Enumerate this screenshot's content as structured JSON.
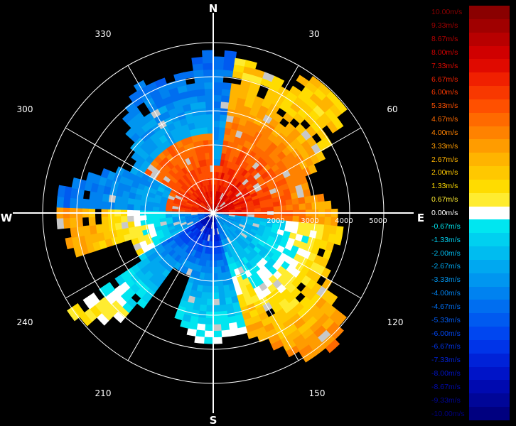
{
  "compass": {
    "north": "N",
    "east": "E",
    "south": "S",
    "west": "W"
  },
  "bearings": [
    "30",
    "60",
    "120",
    "150",
    "210",
    "240",
    "300",
    "330"
  ],
  "range_labels": [
    "2000",
    "3000",
    "4000",
    "5000"
  ],
  "legend": [
    {
      "label": "10.00m/s",
      "color": "#8a0000"
    },
    {
      "label": "9.33m/s",
      "color": "#a00000"
    },
    {
      "label": "8.67m/s",
      "color": "#b80000"
    },
    {
      "label": "8.00m/s",
      "color": "#d00000"
    },
    {
      "label": "7.33m/s",
      "color": "#e00a00"
    },
    {
      "label": "6.67m/s",
      "color": "#f02000"
    },
    {
      "label": "6.00m/s",
      "color": "#f83800"
    },
    {
      "label": "5.33m/s",
      "color": "#ff5000"
    },
    {
      "label": "4.67m/s",
      "color": "#ff6a00"
    },
    {
      "label": "4.00m/s",
      "color": "#ff8200"
    },
    {
      "label": "3.33m/s",
      "color": "#ff9c00"
    },
    {
      "label": "2.67m/s",
      "color": "#ffb400"
    },
    {
      "label": "2.00m/s",
      "color": "#ffc800"
    },
    {
      "label": "1.33m/s",
      "color": "#ffdc00"
    },
    {
      "label": "0.67m/s",
      "color": "#ffec30"
    },
    {
      "label": "0.00m/s",
      "color": "#ffffff"
    },
    {
      "label": "-0.67m/s",
      "color": "#00e6f0"
    },
    {
      "label": "-1.33m/s",
      "color": "#00d0f0"
    },
    {
      "label": "-2.00m/s",
      "color": "#00bcf0"
    },
    {
      "label": "-2.67m/s",
      "color": "#00a8f0"
    },
    {
      "label": "-3.33m/s",
      "color": "#0096f0"
    },
    {
      "label": "-4.00m/s",
      "color": "#0082f0"
    },
    {
      "label": "-4.67m/s",
      "color": "#006ef0"
    },
    {
      "label": "-5.33m/s",
      "color": "#005af0"
    },
    {
      "label": "-6.00m/s",
      "color": "#0046f0"
    },
    {
      "label": "-6.67m/s",
      "color": "#0034e8"
    },
    {
      "label": "-7.33m/s",
      "color": "#0022d8"
    },
    {
      "label": "-8.00m/s",
      "color": "#0014c8"
    },
    {
      "label": "-8.67m/s",
      "color": "#000ab0"
    },
    {
      "label": "-9.33m/s",
      "color": "#000698"
    },
    {
      "label": "-10.00m/s",
      "color": "#000080"
    }
  ]
}
